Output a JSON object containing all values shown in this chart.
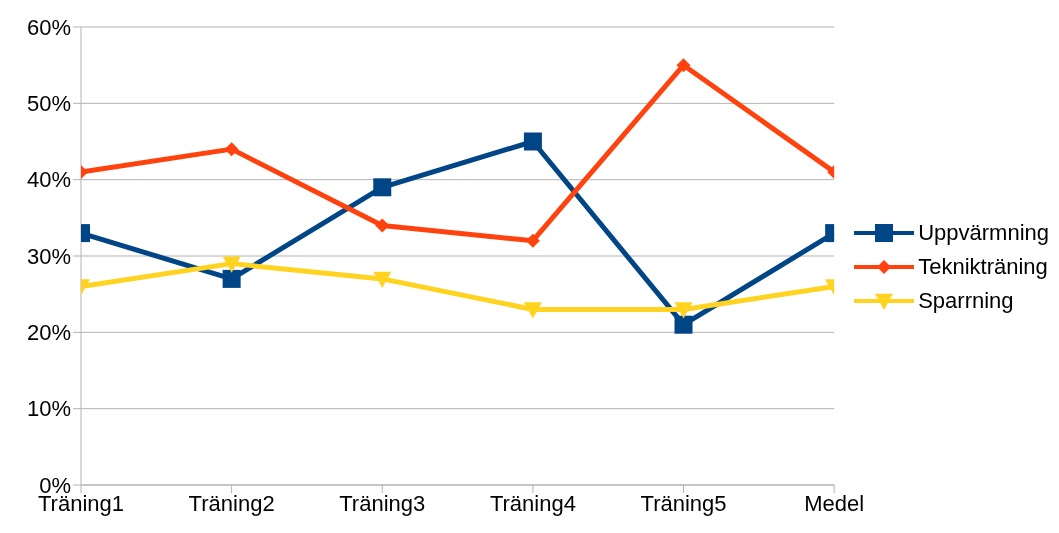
{
  "chart_data": {
    "type": "line",
    "categories": [
      "Träning1",
      "Träning2",
      "Träning3",
      "Träning4",
      "Träning5",
      "Medel"
    ],
    "series": [
      {
        "name": "Uppvärmning",
        "color": "#004586",
        "marker": "square",
        "values": [
          33,
          27,
          39,
          45,
          21,
          33
        ]
      },
      {
        "name": "Teknikträning",
        "color": "#ff420e",
        "marker": "diamond",
        "values": [
          41,
          44,
          34,
          32,
          55,
          41
        ]
      },
      {
        "name": "Sparrning",
        "color": "#ffd320",
        "marker": "triangle",
        "values": [
          26,
          29,
          27,
          23,
          23,
          26
        ]
      }
    ],
    "ylim": [
      0,
      60
    ],
    "yticks": [
      {
        "value": 0,
        "label": "0%"
      },
      {
        "value": 10,
        "label": "10%"
      },
      {
        "value": 20,
        "label": "20%"
      },
      {
        "value": 30,
        "label": "30%"
      },
      {
        "value": 40,
        "label": "40%"
      },
      {
        "value": 50,
        "label": "50%"
      },
      {
        "value": 60,
        "label": "60%"
      }
    ],
    "grid": "y",
    "legend": "right",
    "line_style": "solid"
  }
}
